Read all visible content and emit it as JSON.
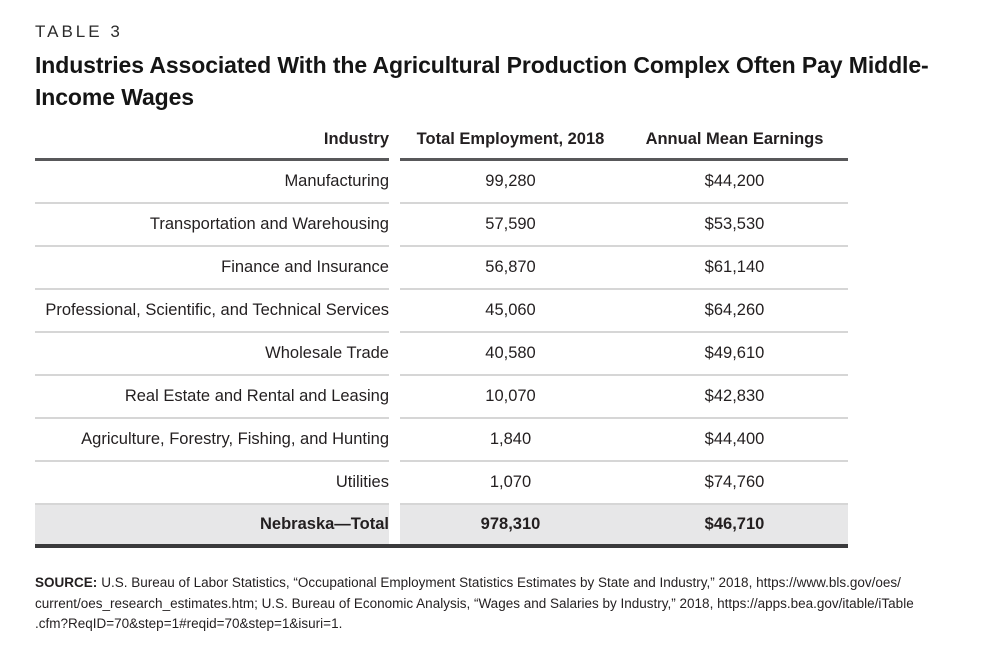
{
  "page": {
    "table_label": "TABLE 3",
    "title": "Industries Associated With the Agricultural Production Complex Often Pay Middle-Income Wages"
  },
  "table": {
    "columns": {
      "industry": "Industry",
      "employment": "Total Employment, 2018",
      "earnings": "Annual Mean Earnings"
    },
    "rows": [
      {
        "industry": "Manufacturing",
        "employment": "99,280",
        "earnings": "$44,200"
      },
      {
        "industry": "Transportation and Warehousing",
        "employment": "57,590",
        "earnings": "$53,530"
      },
      {
        "industry": "Finance and Insurance",
        "employment": "56,870",
        "earnings": "$61,140"
      },
      {
        "industry": "Professional, Scientific, and Technical Services",
        "employment": "45,060",
        "earnings": "$64,260"
      },
      {
        "industry": "Wholesale Trade",
        "employment": "40,580",
        "earnings": "$49,610"
      },
      {
        "industry": "Real Estate and Rental and Leasing",
        "employment": "10,070",
        "earnings": "$42,830"
      },
      {
        "industry": "Agriculture, Forestry, Fishing, and Hunting",
        "employment": "1,840",
        "earnings": "$44,400"
      },
      {
        "industry": "Utilities",
        "employment": "1,070",
        "earnings": "$74,760"
      }
    ],
    "total": {
      "industry": "Nebraska—Total",
      "employment": "978,310",
      "earnings": "$46,710"
    }
  },
  "source": {
    "label": "SOURCE:",
    "lines": [
      "U.S. Bureau of Labor Statistics, “Occupational Employment Statistics Estimates by State and Industry,” 2018, https://www.bls.gov/oes/",
      "current/oes_research_estimates.htm; U.S. Bureau of Economic Analysis, “Wages and Salaries by Industry,” 2018, https://apps.bea.gov/itable/iTable",
      ".cfm?ReqID=70&step=1#reqid=70&step=1&isuri=1."
    ]
  },
  "colors": {
    "text": "#231f20",
    "header_rule": "#58585a",
    "row_divider": "#d6d6d6",
    "total_row_background": "#e7e7e8",
    "bottom_rule": "#3a3a3c"
  }
}
